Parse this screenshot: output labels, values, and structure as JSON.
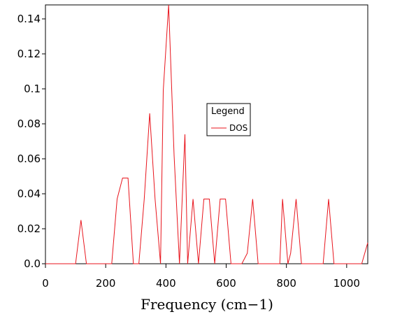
{
  "chart_data": {
    "type": "line",
    "title": "",
    "xlabel": "Frequency (cm−1)",
    "ylabel": "",
    "xlim": [
      0,
      1070
    ],
    "ylim": [
      0,
      0.148
    ],
    "x_ticks": [
      0,
      200,
      400,
      600,
      800,
      1000
    ],
    "x_tick_labels": [
      "0",
      "200",
      "400",
      "600",
      "800",
      "1000"
    ],
    "y_ticks": [
      0,
      0.02,
      0.04,
      0.06,
      0.08,
      0.1,
      0.12,
      0.14
    ],
    "y_tick_labels": [
      "0.0",
      "0.02",
      "0.04",
      "0.06",
      "0.08",
      "0.1",
      "0.12",
      "0.14"
    ],
    "grid": false,
    "legend": {
      "title": "Legend",
      "placement": "center-right"
    },
    "colors": {
      "series": "#e8141c",
      "axes": "#000000",
      "background": "#ffffff"
    },
    "series": [
      {
        "name": "DOS",
        "x": [
          0,
          100,
          118,
          136,
          220,
          238,
          256,
          274,
          292,
          310,
          328,
          346,
          364,
          382,
          391,
          409,
          427,
          445,
          454,
          463,
          472,
          490,
          508,
          526,
          544,
          562,
          580,
          598,
          616,
          634,
          652,
          670,
          688,
          706,
          724,
          742,
          760,
          778,
          787,
          805,
          814,
          832,
          850,
          868,
          886,
          904,
          922,
          940,
          958,
          976,
          994,
          1012,
          1030,
          1050,
          1070
        ],
        "y": [
          0,
          0,
          0.025,
          0,
          0,
          0.037,
          0.049,
          0.049,
          0,
          0,
          0.037,
          0.086,
          0.037,
          0,
          0.099,
          0.148,
          0.062,
          0,
          0.037,
          0.074,
          0,
          0.037,
          0,
          0.037,
          0.037,
          0,
          0.037,
          0.037,
          0,
          0,
          0,
          0.006,
          0.037,
          0,
          0,
          0,
          0,
          0,
          0.037,
          0,
          0.006,
          0.037,
          0,
          0,
          0,
          0,
          0,
          0.037,
          0,
          0,
          0,
          0,
          0,
          0,
          0.012
        ]
      }
    ]
  }
}
